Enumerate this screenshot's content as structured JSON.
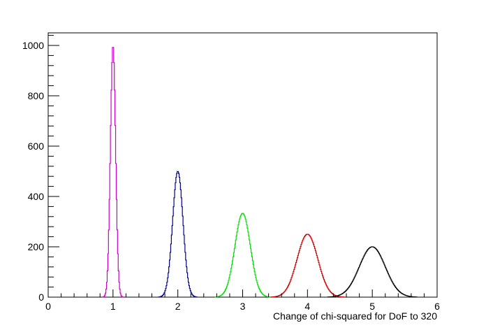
{
  "chart_data": {
    "type": "line",
    "style": "step-histogram",
    "title": "",
    "xlabel": "Change of chi-squared for DoF to 320",
    "ylabel": "",
    "xlim": [
      0,
      6
    ],
    "ylim": [
      0,
      1050
    ],
    "grid": false,
    "x_ticks": [
      0,
      1,
      2,
      3,
      4,
      5,
      6
    ],
    "y_ticks": [
      0,
      200,
      400,
      600,
      800,
      1000
    ],
    "x_tick_labels": [
      "0",
      "1",
      "2",
      "3",
      "4",
      "5",
      "6"
    ],
    "y_tick_labels": [
      "0",
      "200",
      "400",
      "600",
      "800",
      "1000"
    ],
    "series": [
      {
        "color": "#cc00cc",
        "center": 1.0,
        "peak": 1000,
        "sigma": 0.04
      },
      {
        "color": "#00008b",
        "center": 2.0,
        "peak": 500,
        "sigma": 0.08
      },
      {
        "color": "#00dd00",
        "center": 3.0,
        "peak": 333,
        "sigma": 0.12
      },
      {
        "color": "#cc0000",
        "center": 4.0,
        "peak": 250,
        "sigma": 0.16
      },
      {
        "color": "#000000",
        "center": 5.0,
        "peak": 200,
        "sigma": 0.2
      }
    ]
  }
}
